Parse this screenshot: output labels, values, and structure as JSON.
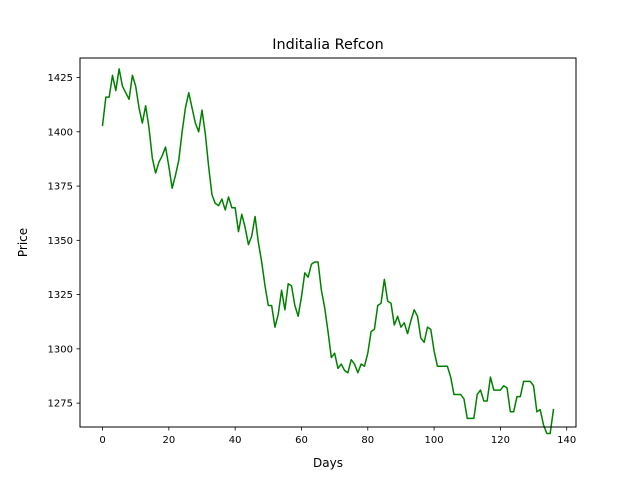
{
  "chart_data": {
    "type": "line",
    "title": "Inditalia Refcon",
    "xlabel": "Days",
    "ylabel": "Price",
    "xlim": [
      -6.8,
      142.8
    ],
    "ylim": [
      1264,
      1434
    ],
    "xticks": [
      0,
      20,
      40,
      60,
      80,
      100,
      120,
      140
    ],
    "yticks": [
      1275,
      1300,
      1325,
      1350,
      1375,
      1400,
      1425
    ],
    "grid": false,
    "legend": "none",
    "series": [
      {
        "color": "#008000",
        "x": [
          0,
          1,
          2,
          3,
          4,
          5,
          6,
          7,
          8,
          9,
          10,
          11,
          12,
          13,
          14,
          15,
          16,
          17,
          18,
          19,
          20,
          21,
          22,
          23,
          24,
          25,
          26,
          27,
          28,
          29,
          30,
          31,
          32,
          33,
          34,
          35,
          36,
          37,
          38,
          39,
          40,
          41,
          42,
          43,
          44,
          45,
          46,
          47,
          48,
          49,
          50,
          51,
          52,
          53,
          54,
          55,
          56,
          57,
          58,
          59,
          60,
          61,
          62,
          63,
          64,
          65,
          66,
          67,
          68,
          69,
          70,
          71,
          72,
          73,
          74,
          75,
          76,
          77,
          78,
          79,
          80,
          81,
          82,
          83,
          84,
          85,
          86,
          87,
          88,
          89,
          90,
          91,
          92,
          93,
          94,
          95,
          96,
          97,
          98,
          99,
          100,
          101,
          102,
          103,
          104,
          105,
          106,
          107,
          108,
          109,
          110,
          111,
          112,
          113,
          114,
          115,
          116,
          117,
          118,
          119,
          120,
          121,
          122,
          123,
          124,
          125,
          126,
          127,
          128,
          129,
          130,
          131,
          132,
          133,
          134,
          135,
          136
        ],
        "y": [
          1403,
          1416,
          1416,
          1426,
          1419,
          1429,
          1421,
          1418,
          1415,
          1426,
          1421,
          1411,
          1404,
          1412,
          1402,
          1388,
          1381,
          1386,
          1389,
          1393,
          1384,
          1374,
          1380,
          1387,
          1400,
          1411,
          1418,
          1411,
          1404,
          1400,
          1410,
          1399,
          1384,
          1371,
          1367,
          1366,
          1369,
          1364,
          1370,
          1365,
          1365,
          1354,
          1362,
          1356,
          1348,
          1352,
          1361,
          1349,
          1340,
          1329,
          1320,
          1320,
          1310,
          1316,
          1327,
          1318,
          1330,
          1329,
          1320,
          1315,
          1324,
          1335,
          1333,
          1339,
          1340,
          1340,
          1327,
          1319,
          1308,
          1296,
          1298,
          1291,
          1293,
          1290,
          1289,
          1295,
          1293,
          1289,
          1293,
          1292,
          1298,
          1308,
          1309,
          1320,
          1321,
          1332,
          1322,
          1321,
          1311,
          1315,
          1310,
          1312,
          1307,
          1313,
          1318,
          1315,
          1305,
          1303,
          1310,
          1309,
          1299,
          1292,
          1292,
          1292,
          1292,
          1287,
          1279,
          1279,
          1279,
          1277,
          1268,
          1268,
          1268,
          1279,
          1281,
          1276,
          1276,
          1287,
          1281,
          1281,
          1281,
          1283,
          1282,
          1271,
          1271,
          1278,
          1278,
          1285,
          1285,
          1285,
          1283,
          1271,
          1272,
          1265,
          1261,
          1261,
          1272
        ]
      }
    ]
  }
}
